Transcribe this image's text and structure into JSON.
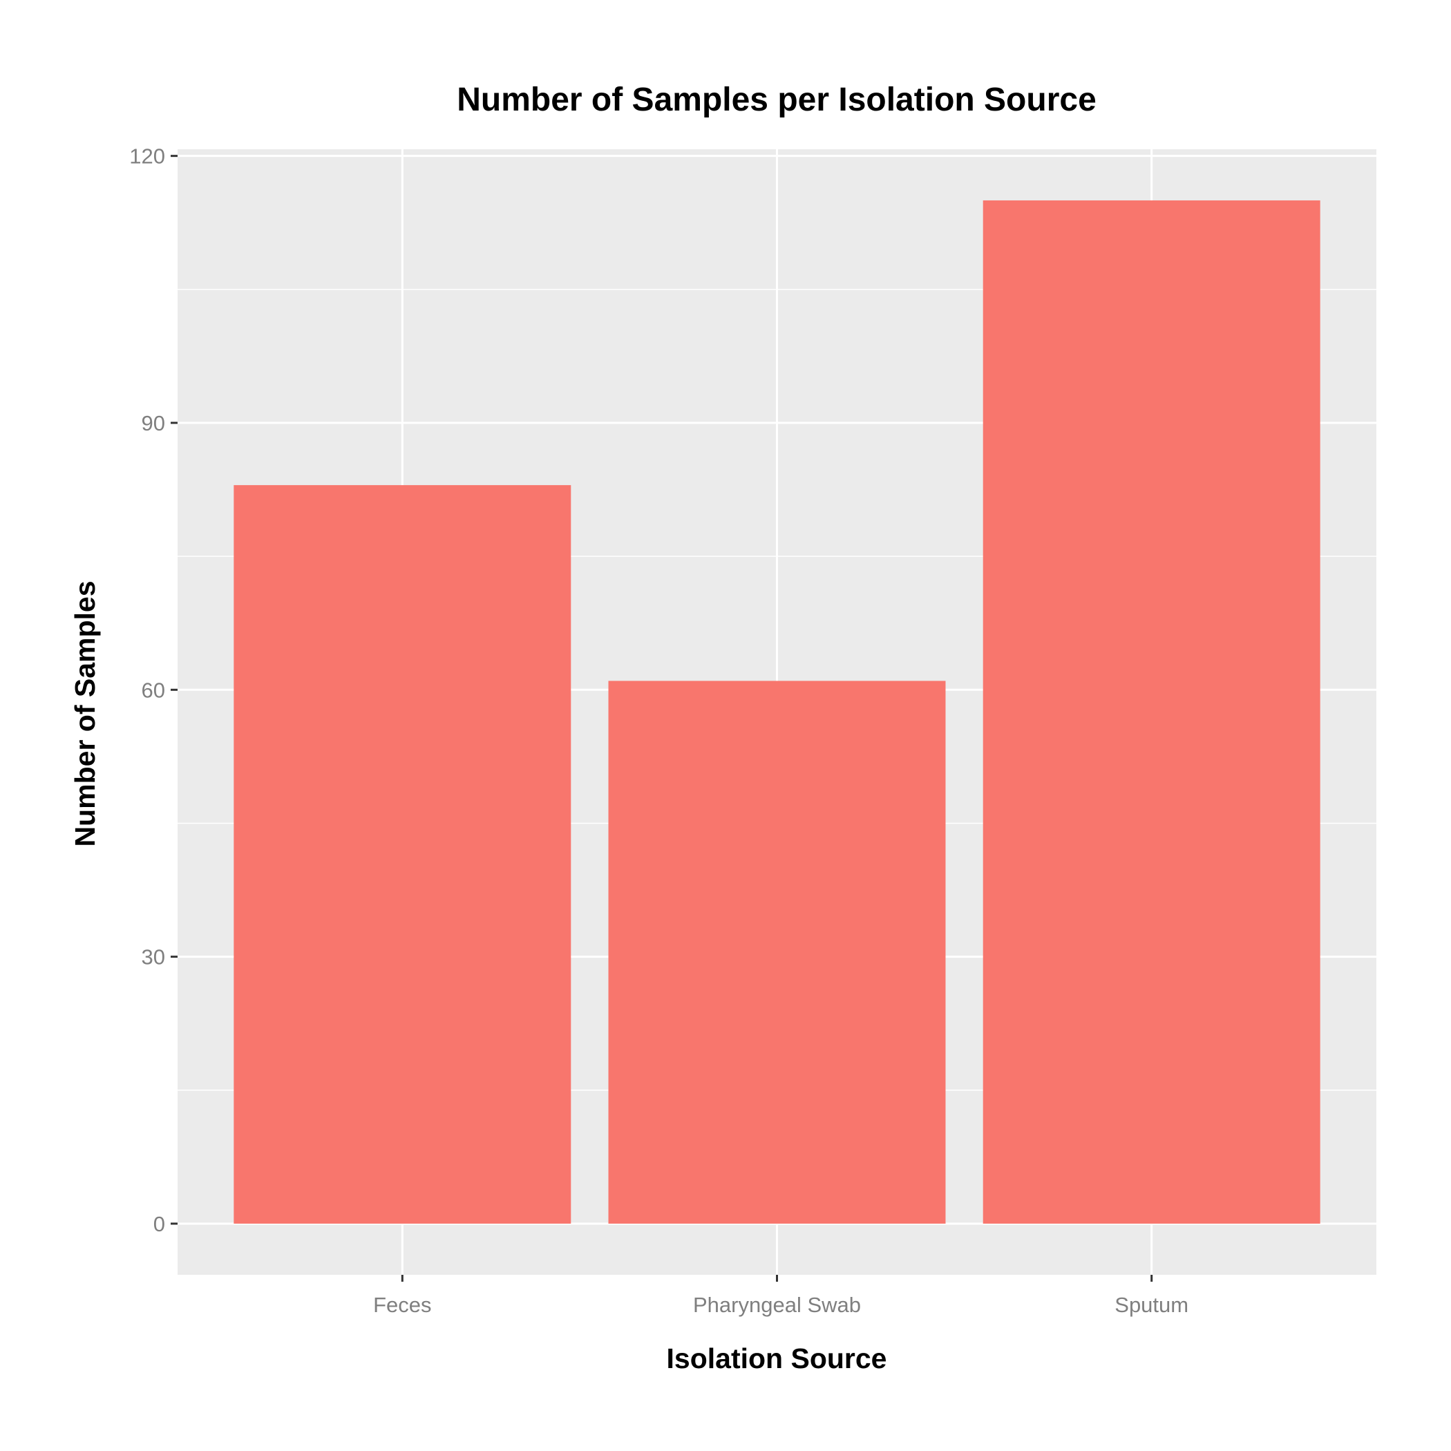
{
  "chart_data": {
    "type": "bar",
    "title": "Number of Samples per Isolation Source",
    "xlabel": "Isolation Source",
    "ylabel": "Number of Samples",
    "categories": [
      "Feces",
      "Pharyngeal Swab",
      "Sputum"
    ],
    "values": [
      83,
      61,
      115
    ],
    "ylim": [
      -5.75,
      120.75
    ],
    "yticks": [
      0,
      30,
      60,
      90,
      120
    ],
    "y_minor_ticks": [
      15,
      45,
      75,
      105
    ],
    "ytick_labels": [
      "0",
      "30",
      "60",
      "90",
      "120"
    ],
    "grid": true,
    "legend": "none",
    "colors": {
      "bar": "#F8766D",
      "panel_background": "#EBEBEB",
      "grid": "#FFFFFF"
    }
  }
}
